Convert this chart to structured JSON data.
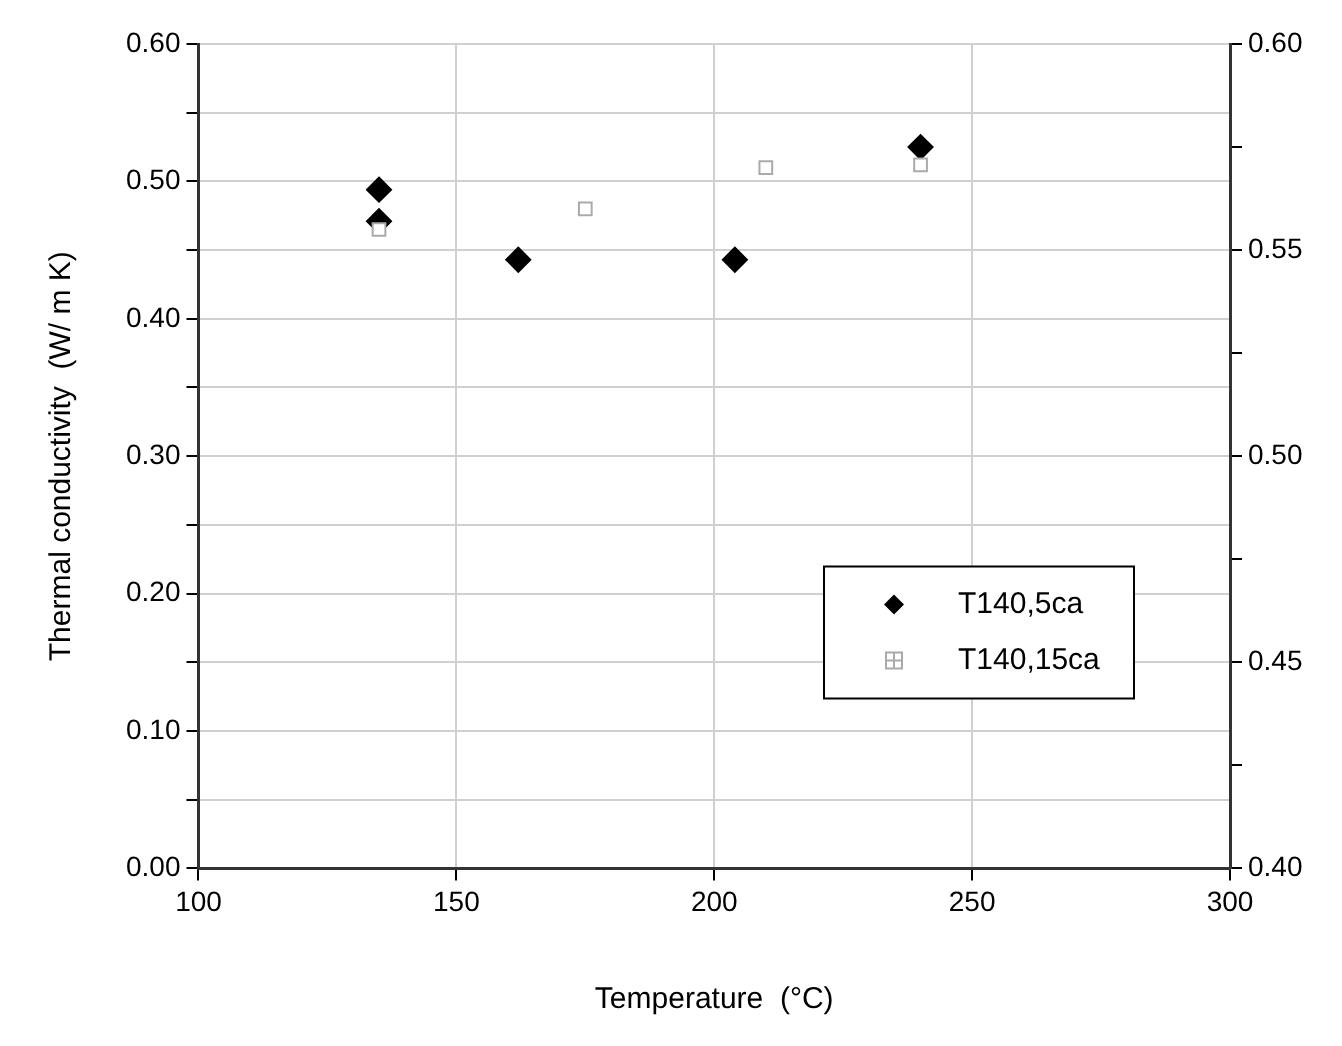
{
  "chart_data": {
    "type": "scatter",
    "xlabel": "Temperature  (°C)",
    "ylabel": "Thermal conductivity  (W/ m K)",
    "xlim": [
      100,
      300
    ],
    "xticks": [
      100,
      150,
      200,
      250,
      300
    ],
    "ylim": [
      0,
      0.6
    ],
    "yticks": [
      {
        "value": 0,
        "label": "0.00"
      },
      {
        "value": 0.05,
        "label": null
      },
      {
        "value": 0.1,
        "label": "0.10"
      },
      {
        "value": 0.15,
        "label": null
      },
      {
        "value": 0.2,
        "label": "0.20"
      },
      {
        "value": 0.25,
        "label": null
      },
      {
        "value": 0.3,
        "label": "0.30"
      },
      {
        "value": 0.35,
        "label": null
      },
      {
        "value": 0.4,
        "label": "0.40"
      },
      {
        "value": 0.45,
        "label": null
      },
      {
        "value": 0.5,
        "label": "0.50"
      },
      {
        "value": 0.55,
        "label": null
      },
      {
        "value": 0.6,
        "label": "0.60"
      }
    ],
    "y2lim": [
      0.4,
      0.6
    ],
    "y2ticks": [
      {
        "value": 0.4,
        "label": "0.40"
      },
      {
        "value": 0.425,
        "label": null
      },
      {
        "value": 0.45,
        "label": "0.45"
      },
      {
        "value": 0.475,
        "label": null
      },
      {
        "value": 0.5,
        "label": "0.50"
      },
      {
        "value": 0.525,
        "label": null
      },
      {
        "value": 0.55,
        "label": "0.55"
      },
      {
        "value": 0.575,
        "label": null
      },
      {
        "value": 0.6,
        "label": "0.60"
      }
    ],
    "grid": true,
    "legend": "bottom right",
    "series": [
      {
        "name": "T140,5ca",
        "color": "#000000",
        "marker": "diamond",
        "x": [
          135,
          135,
          162,
          204,
          240
        ],
        "values": [
          0.494,
          0.471,
          0.443,
          0.443,
          0.525
        ]
      },
      {
        "name": "T140,15ca",
        "color": "#aaaaaa",
        "marker": "square",
        "x": [
          135,
          175,
          210,
          240
        ],
        "values": [
          0.465,
          0.48,
          0.51,
          0.512
        ]
      }
    ]
  }
}
